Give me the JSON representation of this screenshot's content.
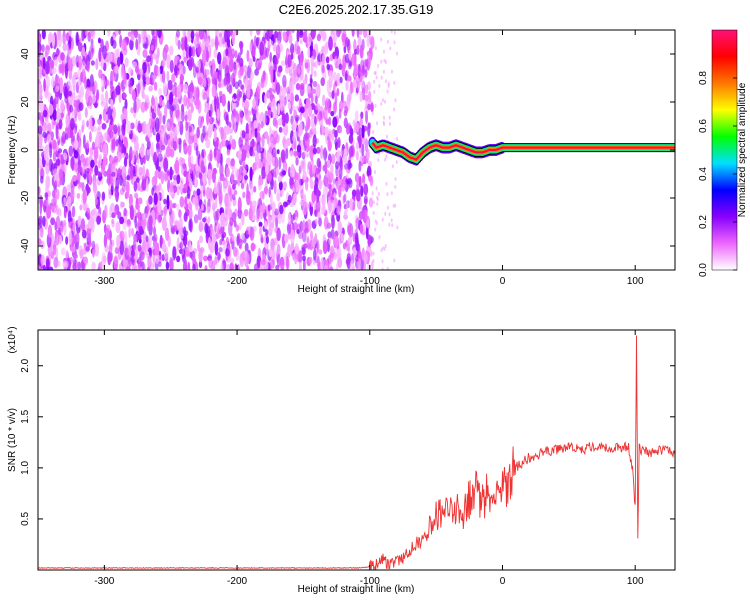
{
  "title": "C2E6.2025.202.17.35.G19",
  "chart_data": [
    {
      "type": "heatmap",
      "xlabel": "Height of straight line (km)",
      "ylabel": "Frequency (Hz)",
      "xlim": [
        -350,
        130
      ],
      "ylim": [
        -50,
        50
      ],
      "x_ticks": [
        -300,
        -200,
        -100,
        0,
        100
      ],
      "x_tick_labels": [
        "-300",
        "-200",
        "-100",
        "0",
        "100"
      ],
      "y_ticks": [
        -40,
        -20,
        0,
        20,
        40
      ],
      "y_tick_labels": [
        "-40",
        "-20",
        "0",
        "20",
        "40"
      ],
      "colorbar": {
        "label": "Normalized spectral amplitude",
        "range": [
          0,
          1
        ],
        "ticks": [
          0.0,
          0.2,
          0.4,
          0.6,
          0.8
        ],
        "tick_labels": [
          "0.0",
          "0.2",
          "0.4",
          "0.6",
          "0.8"
        ],
        "colors": [
          "#ffffff",
          "#ee66ff",
          "#8800ff",
          "#0000ff",
          "#00e0ff",
          "#00ff00",
          "#ffff00",
          "#ff7700",
          "#ff0000",
          "#ff1177"
        ]
      },
      "noise_region_x": [
        -350,
        -98
      ],
      "ridge": {
        "x": [
          -98,
          -95,
          -90,
          -85,
          -80,
          -75,
          -70,
          -65,
          -60,
          -55,
          -50,
          -45,
          -40,
          -35,
          -30,
          -25,
          -20,
          -15,
          -10,
          -5,
          0,
          20,
          40,
          60,
          80,
          95,
          100,
          105,
          130
        ],
        "y": [
          3,
          1,
          2,
          1,
          0,
          -1,
          -3,
          -4,
          -1,
          1,
          2,
          1,
          1,
          2,
          1,
          0,
          -1,
          -1,
          0,
          0,
          1,
          1,
          1,
          1,
          1,
          1,
          1,
          1,
          1
        ]
      }
    },
    {
      "type": "line",
      "xlabel": "Height of straight line (km)",
      "ylabel": "SNR (10 * v/v)",
      "scale_label": "(x10⁴)",
      "xlim": [
        -350,
        130
      ],
      "ylim": [
        0,
        2.35
      ],
      "x_ticks": [
        -300,
        -200,
        -100,
        0,
        100
      ],
      "x_tick_labels": [
        "-300",
        "-200",
        "-100",
        "0",
        "100"
      ],
      "y_ticks": [
        0.5,
        1.0,
        1.5,
        2.0
      ],
      "y_tick_labels": [
        "0.5",
        "1.0",
        "1.5",
        "2.0"
      ],
      "series": [
        {
          "color": "#ee3333",
          "x": [
            -350,
            -300,
            -250,
            -200,
            -150,
            -110,
            -100,
            -95,
            -90,
            -85,
            -80,
            -75,
            -70,
            -65,
            -60,
            -55,
            -50,
            -45,
            -40,
            -35,
            -30,
            -25,
            -20,
            -15,
            -10,
            -5,
            0,
            5,
            10,
            15,
            20,
            25,
            30,
            40,
            50,
            60,
            70,
            80,
            90,
            95,
            98,
            100,
            101,
            102,
            103,
            104,
            106,
            110,
            120,
            130
          ],
          "y": [
            0.02,
            0.02,
            0.02,
            0.02,
            0.02,
            0.02,
            0.03,
            0.05,
            0.1,
            0.05,
            0.08,
            0.1,
            0.2,
            0.25,
            0.3,
            0.45,
            0.55,
            0.6,
            0.55,
            0.6,
            0.5,
            0.7,
            0.75,
            0.7,
            0.75,
            0.7,
            0.8,
            0.85,
            1.0,
            1.05,
            1.1,
            1.12,
            1.15,
            1.18,
            1.2,
            1.18,
            1.22,
            1.2,
            1.2,
            1.2,
            1.0,
            0.6,
            2.3,
            0.3,
            1.2,
            1.15,
            1.18,
            1.15,
            1.17,
            1.15
          ]
        }
      ]
    }
  ]
}
